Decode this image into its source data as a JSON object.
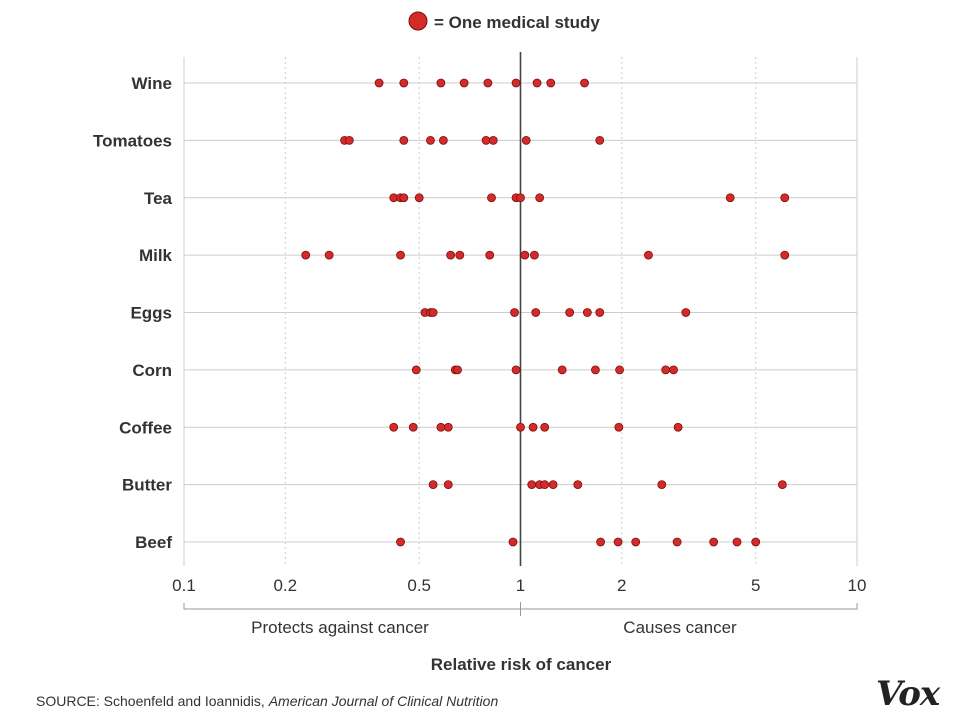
{
  "legend": {
    "label": "= One medical study",
    "marker_color": "#d42a2a"
  },
  "colors": {
    "dot_fill": "#d42a2a",
    "dot_stroke": "#7a1010",
    "grid": "#cccccc",
    "reference_line": "#444444"
  },
  "source": {
    "prefix": "SOURCE: Schoenfeld and Ioannidis, ",
    "journal": "American Journal of Clinical Nutrition"
  },
  "brand": "Vox",
  "chart_data": {
    "type": "scatter",
    "x_scale": "log",
    "xlim": [
      0.1,
      10
    ],
    "xticks": [
      {
        "value": 0.1,
        "label": "0.1"
      },
      {
        "value": 0.2,
        "label": "0.2"
      },
      {
        "value": 0.5,
        "label": "0.5"
      },
      {
        "value": 1,
        "label": "1"
      },
      {
        "value": 2,
        "label": "2"
      },
      {
        "value": 5,
        "label": "5"
      },
      {
        "value": 10,
        "label": "10"
      }
    ],
    "reference_value": 1,
    "xlabel": "Relative risk of cancer",
    "region_labels": {
      "left": "Protects against cancer",
      "right": "Causes cancer"
    },
    "grid": true,
    "legend_position": "top-center",
    "categories": [
      {
        "name": "Wine",
        "values": [
          0.38,
          0.45,
          0.58,
          0.68,
          0.8,
          0.97,
          1.12,
          1.23,
          1.55
        ]
      },
      {
        "name": "Tomatoes",
        "values": [
          0.3,
          0.31,
          0.45,
          0.54,
          0.59,
          0.79,
          0.83,
          1.04,
          1.72
        ]
      },
      {
        "name": "Tea",
        "values": [
          0.42,
          0.44,
          0.45,
          0.5,
          0.82,
          0.97,
          1.0,
          1.14,
          4.2,
          6.1
        ]
      },
      {
        "name": "Milk",
        "values": [
          0.23,
          0.27,
          0.44,
          0.62,
          0.66,
          0.81,
          1.03,
          1.1,
          2.4,
          6.1
        ]
      },
      {
        "name": "Eggs",
        "values": [
          0.52,
          0.54,
          0.55,
          0.96,
          1.11,
          1.4,
          1.58,
          1.72,
          3.1
        ]
      },
      {
        "name": "Corn",
        "values": [
          0.49,
          0.64,
          0.65,
          0.97,
          1.33,
          1.67,
          1.97,
          2.7,
          2.85
        ]
      },
      {
        "name": "Coffee",
        "values": [
          0.42,
          0.48,
          0.58,
          0.61,
          1.0,
          1.09,
          1.18,
          1.96,
          2.94
        ]
      },
      {
        "name": "Butter",
        "values": [
          0.55,
          0.61,
          1.08,
          1.14,
          1.18,
          1.25,
          1.48,
          2.63,
          6.0
        ]
      },
      {
        "name": "Beef",
        "values": [
          0.44,
          0.95,
          1.73,
          1.95,
          2.2,
          2.92,
          3.75,
          4.4,
          5.0
        ]
      }
    ]
  }
}
